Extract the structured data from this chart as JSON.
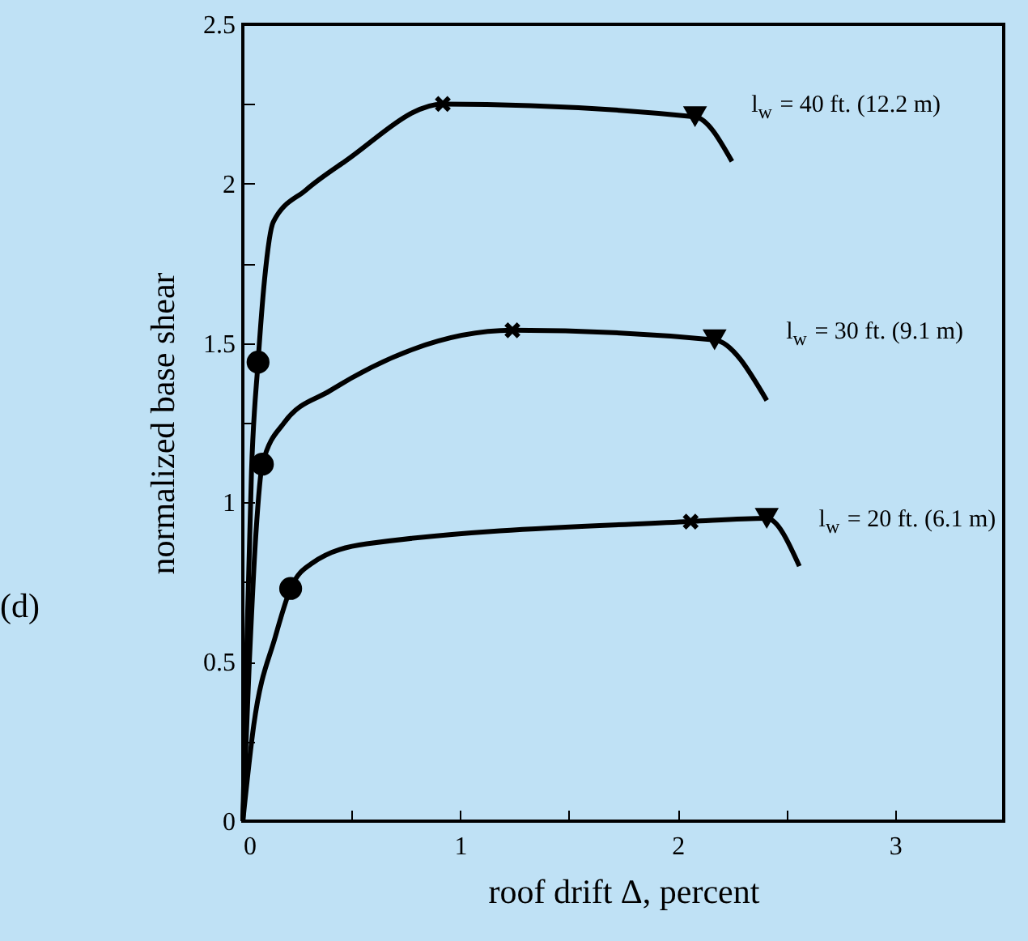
{
  "chart_data": {
    "type": "line",
    "xlabel": "roof drift Δ, percent",
    "ylabel": "normalized base shear",
    "annotations": [
      "(d)"
    ],
    "xlim": [
      0,
      3.5
    ],
    "xticks": [
      0,
      {
        "value": 0.5,
        "label": null
      },
      1,
      {
        "value": 1.5,
        "label": null
      },
      2,
      {
        "value": 2.5,
        "label": null
      },
      3
    ],
    "ylim": [
      0,
      2.5
    ],
    "yticks": [
      0,
      {
        "value": 0.25,
        "label": null
      },
      0.5,
      {
        "value": 0.75,
        "label": null
      },
      1,
      {
        "value": 1.25,
        "label": null
      },
      1.5,
      {
        "value": 1.75,
        "label": null
      },
      2,
      {
        "value": 2.25,
        "label": null
      },
      2.5
    ],
    "grid": false,
    "tick_labels": "xy",
    "series": [
      {
        "name": "l$_{w}$ = 40 ft. (12.2 m)",
        "color": "#000000",
        "x": [
          0,
          0.02,
          0.04,
          0.07,
          0.1,
          0.14,
          0.29,
          0.47,
          0.92,
          2.08,
          2.25
        ],
        "values": [
          0,
          0.6,
          1.1,
          1.44,
          1.7,
          1.88,
          1.98,
          2.07,
          2.25,
          2.21,
          2.07
        ]
      },
      {
        "name": "l$_{w}$ = 30 ft. (9.1 m)",
        "color": "#000000",
        "x": [
          0,
          0.03,
          0.06,
          0.09,
          0.19,
          0.4,
          1.24,
          2.17,
          2.41
        ],
        "values": [
          0,
          0.5,
          0.9,
          1.12,
          1.25,
          1.35,
          1.54,
          1.51,
          1.32
        ]
      },
      {
        "name": "l$_{w}$ = 20 ft. (6.1 m)",
        "color": "#000000",
        "x": [
          0,
          0.05,
          0.15,
          0.22,
          0.32,
          0.57,
          2.06,
          2.41,
          2.56
        ],
        "values": [
          0,
          0.3,
          0.58,
          0.73,
          0.81,
          0.87,
          0.94,
          0.95,
          0.8
        ]
      },
      {
        "type": "scatter",
        "marker": "circle",
        "color": "#000000",
        "x": [
          0.07,
          0.09,
          0.22
        ],
        "values": [
          1.44,
          1.12,
          0.73
        ]
      },
      {
        "type": "scatter",
        "marker": "cross",
        "color": "#000000",
        "x": [
          0.92,
          1.24,
          2.06
        ],
        "values": [
          2.25,
          1.54,
          0.94
        ]
      },
      {
        "type": "scatter",
        "marker": "triangle",
        "color": "#000000",
        "x": [
          2.08,
          2.17,
          2.41
        ],
        "values": [
          2.21,
          1.51,
          0.95
        ]
      }
    ]
  }
}
